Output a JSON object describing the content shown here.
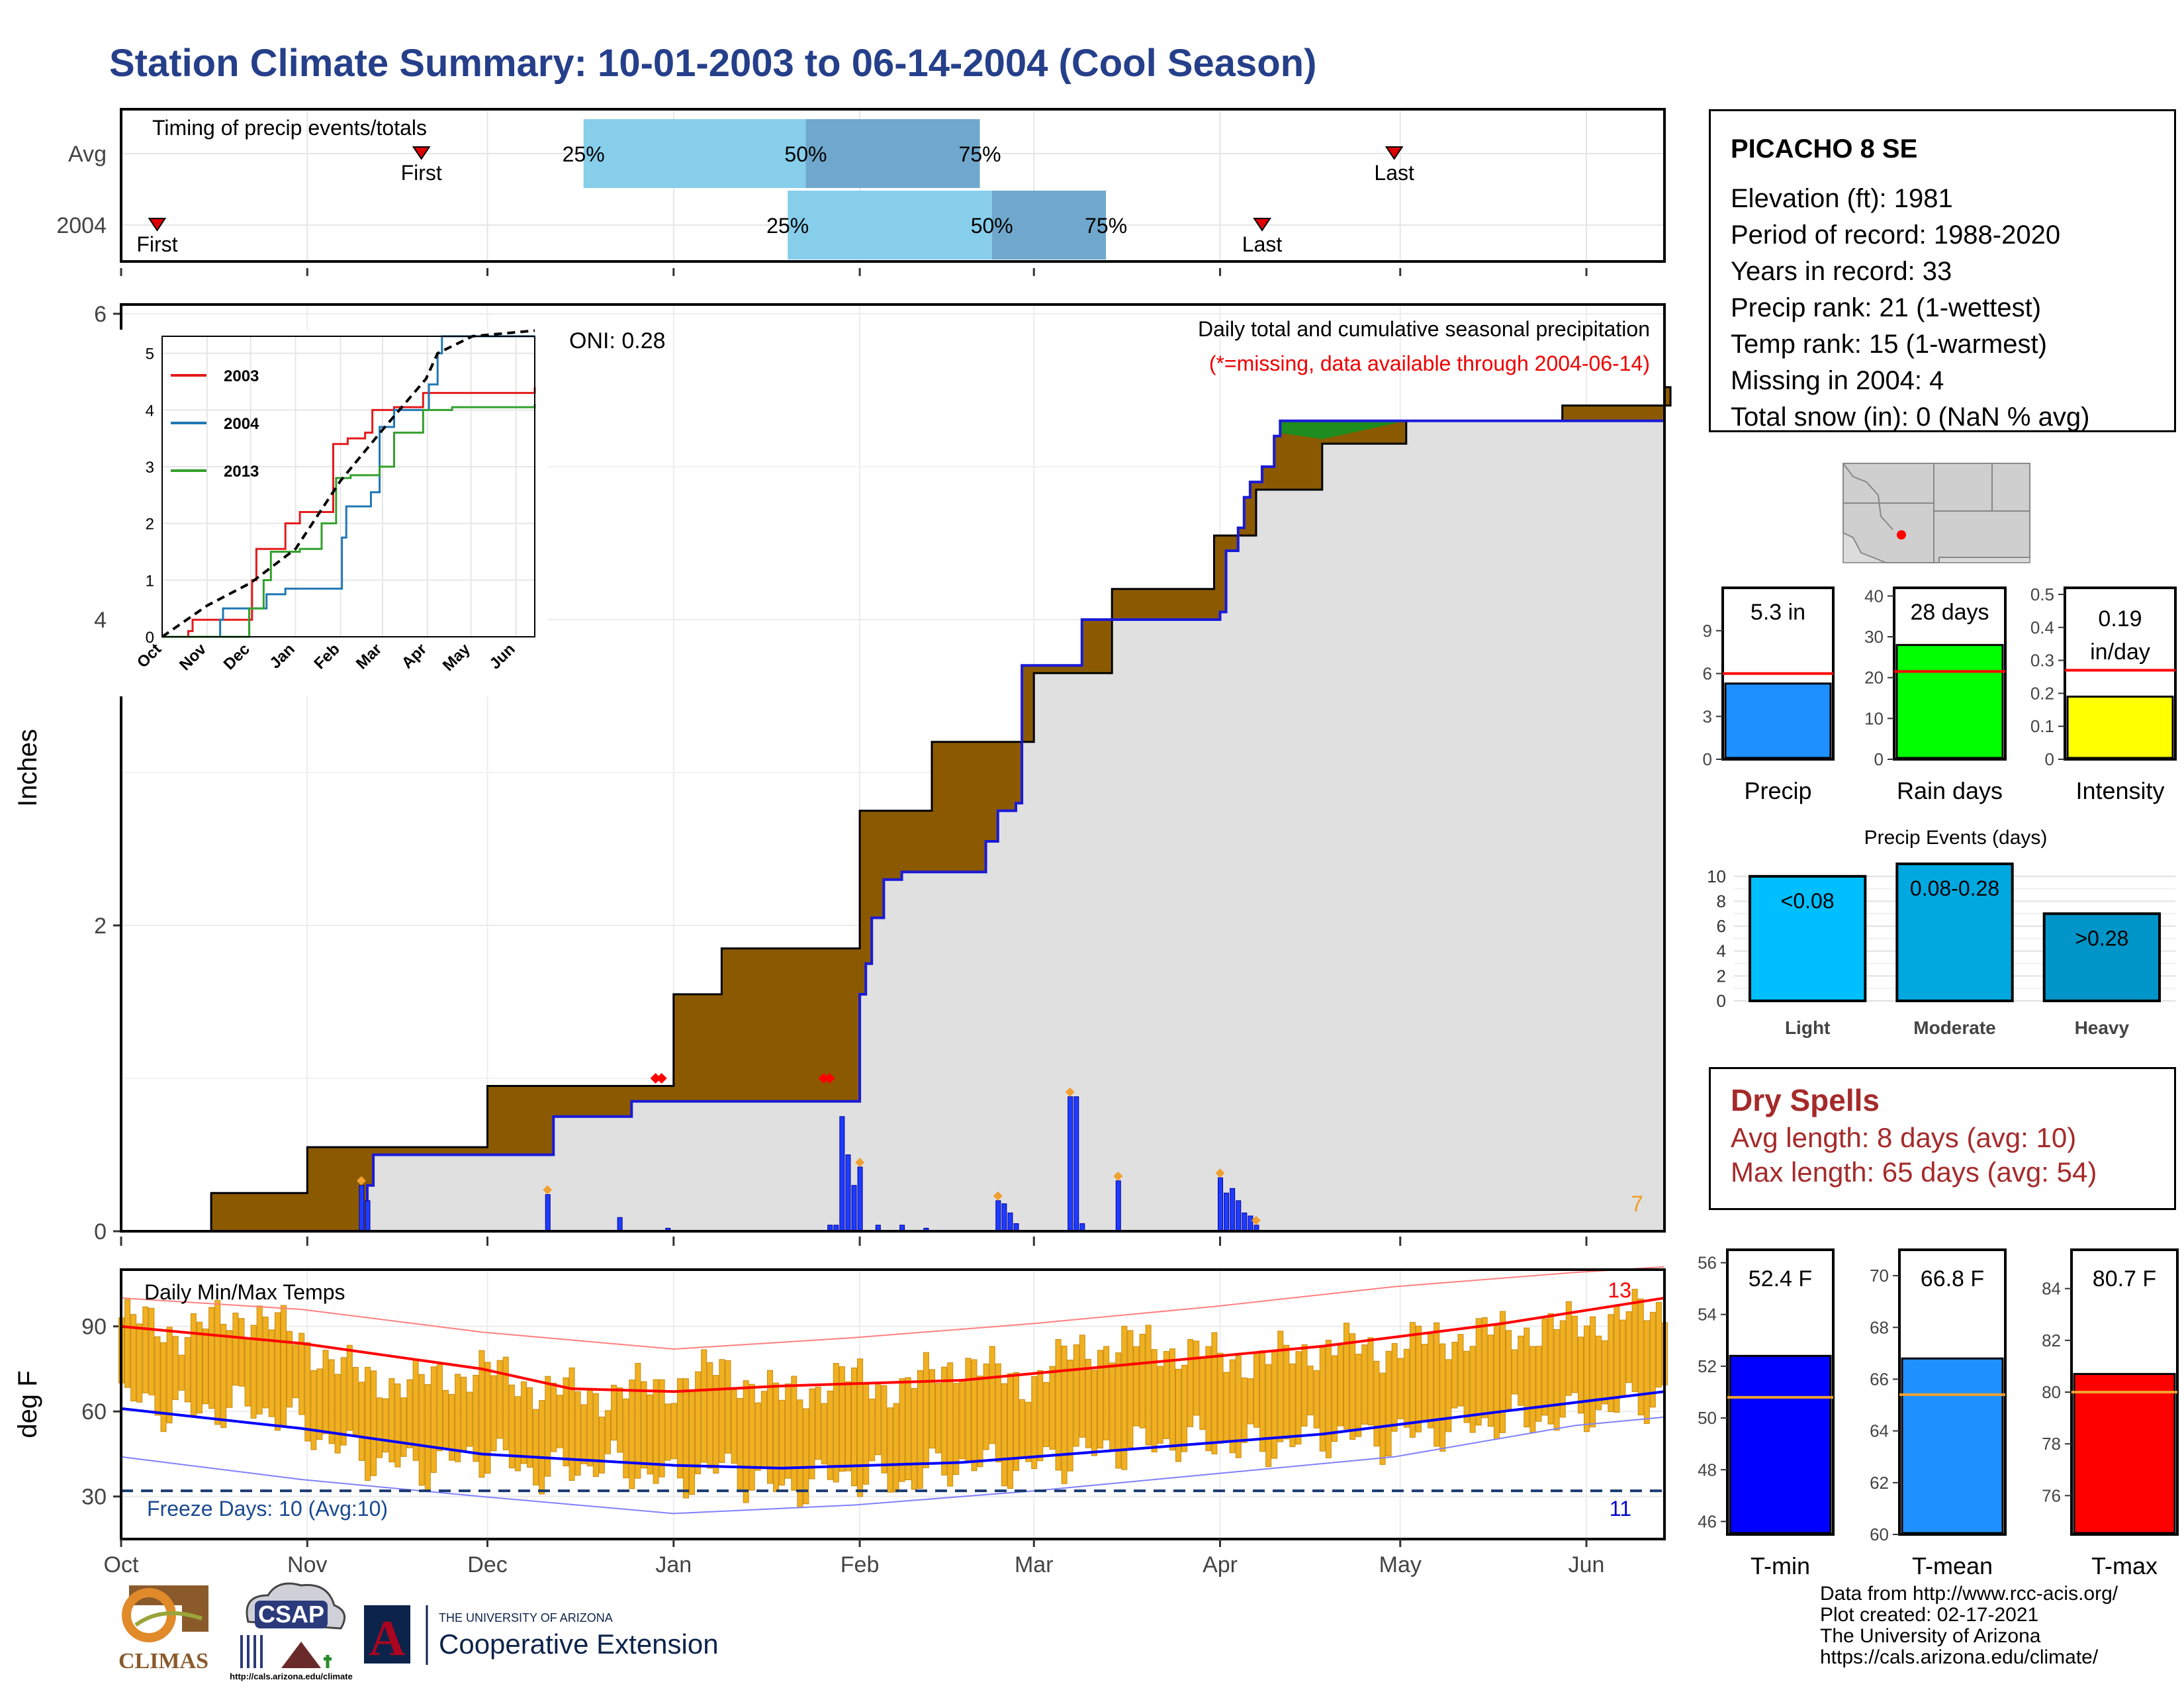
{
  "page_title": "Station Climate Summary: 10-01-2003 to 06-14-2004 (Cool Season)",
  "station": {
    "name": "PICACHO 8 SE",
    "lines": [
      "Elevation (ft): 1981",
      "Period of record: 1988-2020",
      "Years in record: 33",
      "Precip rank: 21 (1-wettest)",
      "Temp rank: 15 (1-warmest)",
      "Missing in 2004: 4",
      "Total snow (in): 0 (NaN % avg)"
    ]
  },
  "dry_spells": {
    "title": "Dry Spells",
    "avg_length": "Avg length: 8 days (avg: 10)",
    "max_length": "Max length: 65 days (avg: 54)"
  },
  "credits": [
    "Data from http://www.rcc-acis.org/",
    "Plot created: 02-17-2021",
    "The University of Arizona",
    "https://cals.arizona.edu/climate/"
  ],
  "logos": {
    "climas": "CLIMAS",
    "csap": "CSAP",
    "csap_url": "http://cals.arizona.edu/climate",
    "ua_small": "THE UNIVERSITY OF ARIZONA",
    "ua_big": "Cooperative Extension",
    "ua_mark": "A"
  },
  "colors": {
    "title_blue": "#253f8a",
    "deficit_brown": "#8b5a00",
    "surplus_green": "#1e8c1e",
    "obs_blue": "#1010d0",
    "panel_gray": "#e0e0e0",
    "precip_bar": "#1e90ff",
    "raindays_bar": "#00ff00",
    "intensity_bar": "#ffff00",
    "temp_bar": "#f0b020",
    "tmin_bar": "#0000ff",
    "tmean_bar": "#1e90ff",
    "tmax_bar": "#ff0000"
  },
  "chart_data": [
    {
      "id": "timing",
      "type": "bar",
      "title": "Timing of precip events/totals",
      "rows": [
        {
          "label": "Avg",
          "first": "2003-11-20",
          "p25": "2003-12-17",
          "p50": "2004-01-23",
          "p75": "2004-02-21",
          "last": "2004-04-30",
          "first_label": "First",
          "last_label": "Last",
          "p25_label": "25%",
          "p50_label": "50%",
          "p75_label": "75%"
        },
        {
          "label": "2004",
          "first": "2003-10-07",
          "p25": "2004-01-20",
          "p50": "2004-02-23",
          "p75": "2004-03-13",
          "last": "2004-04-08",
          "first_label": "First",
          "last_label": "Last",
          "p25_label": "25%",
          "p50_label": "50%",
          "p75_label": "75%"
        }
      ]
    },
    {
      "id": "cumulative",
      "type": "area",
      "title": "Daily total and cumulative seasonal precipitation",
      "subtitle": "(*=missing, data available through 2004-06-14)",
      "ylabel": "Inches",
      "annotation": "ONI: 0.28",
      "corner_count": "7",
      "ylim": [
        0,
        6.0
      ],
      "yticks": [
        0,
        2,
        4,
        6
      ],
      "xticks": [
        "Oct",
        "Nov",
        "Dec",
        "Jan",
        "Feb",
        "Mar",
        "Apr",
        "May",
        "Jun"
      ],
      "avg_cumulative": [
        [
          0,
          0
        ],
        [
          15,
          0.25
        ],
        [
          31,
          0.55
        ],
        [
          61,
          0.95
        ],
        [
          92,
          1.55
        ],
        [
          100,
          1.85
        ],
        [
          123,
          2.75
        ],
        [
          135,
          3.2
        ],
        [
          152,
          3.65
        ],
        [
          165,
          4.2
        ],
        [
          182,
          4.55
        ],
        [
          189,
          4.85
        ],
        [
          200,
          5.15
        ],
        [
          214,
          5.3
        ],
        [
          240,
          5.4
        ],
        [
          258,
          5.52
        ],
        [
          257,
          5.52
        ]
      ],
      "obs_cumulative": [
        [
          0,
          0
        ],
        [
          40,
          0.0
        ],
        [
          41,
          0.3
        ],
        [
          42,
          0.5
        ],
        [
          71,
          0.5
        ],
        [
          72,
          0.75
        ],
        [
          84,
          0.75
        ],
        [
          85,
          0.85
        ],
        [
          122,
          0.85
        ],
        [
          123,
          1.55
        ],
        [
          124,
          1.75
        ],
        [
          125,
          2.05
        ],
        [
          127,
          2.3
        ],
        [
          130,
          2.35
        ],
        [
          142,
          2.35
        ],
        [
          144,
          2.55
        ],
        [
          146,
          2.75
        ],
        [
          149,
          2.8
        ],
        [
          150,
          3.7
        ],
        [
          152,
          3.7
        ],
        [
          160,
          4.0
        ],
        [
          165,
          4.0
        ],
        [
          183,
          4.05
        ],
        [
          184,
          4.45
        ],
        [
          186,
          4.6
        ],
        [
          187,
          4.8
        ],
        [
          188,
          4.9
        ],
        [
          190,
          5.0
        ],
        [
          192,
          5.2
        ],
        [
          193,
          5.3
        ],
        [
          257,
          5.3
        ]
      ],
      "daily_precip": [
        [
          40,
          0.3
        ],
        [
          41,
          0.2
        ],
        [
          71,
          0.24
        ],
        [
          83,
          0.09
        ],
        [
          91,
          0.02
        ],
        [
          118,
          0.04
        ],
        [
          119,
          0.04
        ],
        [
          120,
          0.75
        ],
        [
          121,
          0.5
        ],
        [
          122,
          0.3
        ],
        [
          123,
          0.42
        ],
        [
          126,
          0.04
        ],
        [
          130,
          0.04
        ],
        [
          134,
          0.02
        ],
        [
          146,
          0.2
        ],
        [
          147,
          0.18
        ],
        [
          148,
          0.12
        ],
        [
          149,
          0.05
        ],
        [
          158,
          0.88
        ],
        [
          159,
          0.88
        ],
        [
          160,
          0.05
        ],
        [
          166,
          0.33
        ],
        [
          183,
          0.35
        ],
        [
          184,
          0.25
        ],
        [
          185,
          0.28
        ],
        [
          186,
          0.2
        ],
        [
          187,
          0.12
        ],
        [
          188,
          0.1
        ],
        [
          189,
          0.04
        ]
      ],
      "trace_days": [
        40,
        71,
        123,
        146,
        158,
        166,
        183,
        189
      ],
      "missing_days": [
        89,
        90,
        117,
        118
      ]
    },
    {
      "id": "inset",
      "type": "line",
      "xticks": [
        "Oct",
        "Nov",
        "Dec",
        "Jan",
        "Feb",
        "Mar",
        "Apr",
        "May",
        "Jun"
      ],
      "yticks": [
        0,
        1,
        2,
        3,
        4,
        5
      ],
      "ylim": [
        0,
        5.3
      ],
      "series": [
        {
          "name": "2003",
          "color": "#e41a1c",
          "points": [
            [
              0,
              0
            ],
            [
              18,
              0.1
            ],
            [
              21,
              0.3
            ],
            [
              60,
              0.3
            ],
            [
              62,
              1.0
            ],
            [
              65,
              1.55
            ],
            [
              80,
              1.55
            ],
            [
              85,
              2.0
            ],
            [
              95,
              2.2
            ],
            [
              110,
              2.2
            ],
            [
              118,
              3.4
            ],
            [
              128,
              3.5
            ],
            [
              140,
              3.6
            ],
            [
              145,
              4.0
            ],
            [
              160,
              4.05
            ],
            [
              180,
              4.3
            ],
            [
              200,
              4.3
            ],
            [
              257,
              4.4
            ]
          ]
        },
        {
          "name": "2004",
          "color": "#1f78b4",
          "points": [
            [
              0,
              0
            ],
            [
              40,
              0.3
            ],
            [
              42,
              0.5
            ],
            [
              72,
              0.75
            ],
            [
              85,
              0.85
            ],
            [
              122,
              0.85
            ],
            [
              124,
              1.75
            ],
            [
              127,
              2.3
            ],
            [
              144,
              2.55
            ],
            [
              150,
              3.7
            ],
            [
              160,
              4.0
            ],
            [
              184,
              4.45
            ],
            [
              190,
              5.0
            ],
            [
              193,
              5.3
            ],
            [
              257,
              5.3
            ]
          ]
        },
        {
          "name": "2013",
          "color": "#33a02c",
          "points": [
            [
              0,
              0
            ],
            [
              50,
              0
            ],
            [
              60,
              0.5
            ],
            [
              70,
              1.0
            ],
            [
              75,
              1.5
            ],
            [
              95,
              1.55
            ],
            [
              110,
              2.0
            ],
            [
              120,
              2.8
            ],
            [
              130,
              2.85
            ],
            [
              150,
              3.0
            ],
            [
              160,
              3.6
            ],
            [
              180,
              4.0
            ],
            [
              200,
              4.05
            ],
            [
              257,
              4.1
            ]
          ]
        },
        {
          "name": "",
          "color": "#000000",
          "dashed": true,
          "points": [
            [
              0,
              0
            ],
            [
              31,
              0.55
            ],
            [
              61,
              0.95
            ],
            [
              92,
              1.55
            ],
            [
              123,
              2.75
            ],
            [
              152,
              3.65
            ],
            [
              182,
              4.55
            ],
            [
              190,
              5.0
            ],
            [
              214,
              5.3
            ],
            [
              257,
              5.4
            ]
          ]
        }
      ]
    },
    {
      "id": "mini-bars",
      "type": "bar",
      "panels": [
        {
          "label": "Precip",
          "value_label": "5.3 in",
          "value": 5.3,
          "avg": 6.0,
          "yticks": [
            0,
            3,
            6,
            9
          ],
          "ylim": [
            0,
            12
          ]
        },
        {
          "label": "Rain days",
          "value_label": "28 days",
          "value": 28,
          "avg": 21.5,
          "yticks": [
            0,
            10,
            20,
            30,
            40
          ],
          "ylim": [
            0,
            42
          ]
        },
        {
          "label": "Intensity",
          "value_label": "0.19 in/day",
          "value": 0.19,
          "avg": 0.27,
          "yticks": [
            0.0,
            0.1,
            0.2,
            0.3,
            0.4,
            0.5
          ],
          "ylim": [
            0,
            0.52
          ]
        }
      ]
    },
    {
      "id": "precip-events",
      "type": "bar",
      "title": "Precip Events (days)",
      "categories": [
        "Light",
        "Moderate",
        "Heavy"
      ],
      "bin_labels": [
        "<0.08",
        "0.08-0.28",
        ">0.28"
      ],
      "values": [
        10,
        11,
        7
      ],
      "colors": [
        "#00bfff",
        "#00a8e0",
        "#0095c8"
      ],
      "yticks": [
        0,
        2,
        4,
        6,
        8,
        10
      ],
      "ylim": [
        0,
        11
      ]
    },
    {
      "id": "temps",
      "type": "line",
      "title": "Daily Min/Max Temps",
      "ylabel": "deg F",
      "annotation": "Freeze Days: 10 (Avg:10)",
      "count_hot": "13",
      "count_cold": "11",
      "yticks": [
        30,
        60,
        90
      ],
      "ylim": [
        15,
        110
      ],
      "xticks": [
        "Oct",
        "Nov",
        "Dec",
        "Jan",
        "Feb",
        "Mar",
        "Apr",
        "May",
        "Jun"
      ],
      "freeze_line": 32,
      "avg_max": [
        [
          0,
          90
        ],
        [
          30,
          84
        ],
        [
          60,
          75
        ],
        [
          75,
          68
        ],
        [
          92,
          67
        ],
        [
          110,
          69
        ],
        [
          140,
          71
        ],
        [
          170,
          77
        ],
        [
          200,
          83
        ],
        [
          230,
          91
        ],
        [
          257,
          100
        ]
      ],
      "avg_min": [
        [
          0,
          61
        ],
        [
          30,
          54
        ],
        [
          60,
          45
        ],
        [
          92,
          41
        ],
        [
          110,
          40
        ],
        [
          140,
          42
        ],
        [
          170,
          47
        ],
        [
          200,
          52
        ],
        [
          230,
          60
        ],
        [
          257,
          67
        ]
      ],
      "rec_max": [
        [
          0,
          100
        ],
        [
          30,
          96
        ],
        [
          60,
          88
        ],
        [
          92,
          82
        ],
        [
          122,
          86
        ],
        [
          152,
          91
        ],
        [
          182,
          97
        ],
        [
          212,
          104
        ],
        [
          242,
          109
        ],
        [
          257,
          111
        ]
      ],
      "rec_min": [
        [
          0,
          44
        ],
        [
          30,
          36
        ],
        [
          60,
          30
        ],
        [
          92,
          24
        ],
        [
          122,
          27
        ],
        [
          152,
          32
        ],
        [
          182,
          38
        ],
        [
          212,
          44
        ],
        [
          242,
          55
        ],
        [
          257,
          58
        ]
      ],
      "obs_max": [
        [
          0,
          93
        ],
        [
          10,
          88
        ],
        [
          22,
          95
        ],
        [
          30,
          85
        ],
        [
          40,
          72
        ],
        [
          50,
          70
        ],
        [
          60,
          75
        ],
        [
          70,
          68
        ],
        [
          80,
          66
        ],
        [
          92,
          70
        ],
        [
          100,
          75
        ],
        [
          110,
          65
        ],
        [
          120,
          72
        ],
        [
          130,
          68
        ],
        [
          140,
          78
        ],
        [
          150,
          70
        ],
        [
          160,
          82
        ],
        [
          170,
          84
        ],
        [
          180,
          80
        ],
        [
          190,
          78
        ],
        [
          200,
          83
        ],
        [
          210,
          82
        ],
        [
          220,
          86
        ],
        [
          230,
          88
        ],
        [
          240,
          90
        ],
        [
          250,
          94
        ],
        [
          257,
          96
        ]
      ],
      "obs_min": [
        [
          0,
          65
        ],
        [
          10,
          60
        ],
        [
          22,
          62
        ],
        [
          30,
          55
        ],
        [
          40,
          44
        ],
        [
          50,
          40
        ],
        [
          60,
          45
        ],
        [
          70,
          38
        ],
        [
          80,
          42
        ],
        [
          92,
          36
        ],
        [
          100,
          40
        ],
        [
          110,
          32
        ],
        [
          120,
          38
        ],
        [
          130,
          35
        ],
        [
          140,
          42
        ],
        [
          150,
          40
        ],
        [
          160,
          45
        ],
        [
          170,
          48
        ],
        [
          180,
          50
        ],
        [
          190,
          47
        ],
        [
          200,
          52
        ],
        [
          210,
          50
        ],
        [
          220,
          54
        ],
        [
          230,
          57
        ],
        [
          240,
          58
        ],
        [
          250,
          62
        ],
        [
          257,
          66
        ]
      ]
    },
    {
      "id": "temp-summary",
      "type": "bar",
      "panels": [
        {
          "label": "T-min",
          "value_label": "52.4 F",
          "value": 52.4,
          "avg": 50.8,
          "yticks": [
            46,
            48,
            50,
            52,
            54,
            56
          ],
          "ylim": [
            45.5,
            56.5
          ]
        },
        {
          "label": "T-mean",
          "value_label": "66.8 F",
          "value": 66.8,
          "avg": 65.4,
          "yticks": [
            60,
            62,
            64,
            66,
            68,
            70
          ],
          "ylim": [
            60,
            71
          ]
        },
        {
          "label": "T-max",
          "value_label": "80.7 F",
          "value": 80.7,
          "avg": 80.0,
          "yticks": [
            76,
            78,
            80,
            82,
            84
          ],
          "ylim": [
            74.5,
            85.5
          ]
        }
      ]
    }
  ]
}
